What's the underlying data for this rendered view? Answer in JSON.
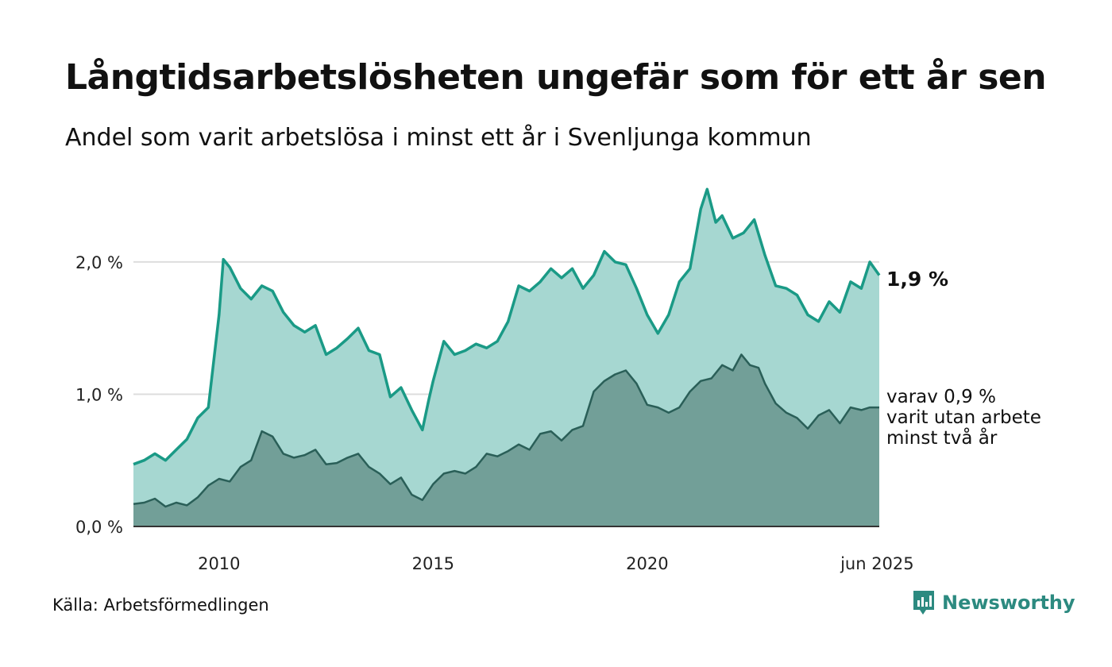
{
  "title": "Långtidsarbetslösheten ungefär som för ett år sen",
  "subtitle": "Andel som varit arbetslösa i minst ett år i Svenljunga kommun",
  "source": "Källa: Arbetsförmedlingen",
  "brand": "Newsworthy",
  "colors": {
    "line1": "#1a9a86",
    "area1": "#a6d7d1",
    "line2": "#2a5f58",
    "area2": "#729f98",
    "grid": "#dddddd",
    "brand": "#2c8a80"
  },
  "chart_data": {
    "type": "area",
    "title": "Långtidsarbetslösheten ungefär som för ett år sen",
    "subtitle": "Andel som varit arbetslösa i minst ett år i Svenljunga kommun",
    "unit": "%",
    "x_start": "2008-01",
    "x_end": "2025-06",
    "x_ticks": [
      {
        "label": "2010",
        "x": 2010
      },
      {
        "label": "2015",
        "x": 2015
      },
      {
        "label": "2020",
        "x": 2020
      },
      {
        "label": "jun 2025",
        "x": 2025
      }
    ],
    "y_ticks": [
      {
        "label": "0,0 %",
        "value": 0
      },
      {
        "label": "1,0 %",
        "value": 1
      },
      {
        "label": "2,0 %",
        "value": 2
      }
    ],
    "ylim": [
      0,
      2.6
    ],
    "grid": true,
    "end_labels": {
      "series1": "1,9 %",
      "series2_lines": [
        "varav 0,9 %",
        "varit utan arbete",
        "minst två år"
      ]
    },
    "series": [
      {
        "key": "min1",
        "points": [
          [
            2008.0,
            0.47
          ],
          [
            2008.25,
            0.5
          ],
          [
            2008.5,
            0.55
          ],
          [
            2008.75,
            0.5
          ],
          [
            2009.0,
            0.58
          ],
          [
            2009.25,
            0.66
          ],
          [
            2009.5,
            0.82
          ],
          [
            2009.75,
            0.9
          ],
          [
            2010.0,
            1.6
          ],
          [
            2010.1,
            2.02
          ],
          [
            2010.25,
            1.96
          ],
          [
            2010.5,
            1.8
          ],
          [
            2010.75,
            1.72
          ],
          [
            2011.0,
            1.82
          ],
          [
            2011.25,
            1.78
          ],
          [
            2011.5,
            1.62
          ],
          [
            2011.75,
            1.52
          ],
          [
            2012.0,
            1.47
          ],
          [
            2012.25,
            1.52
          ],
          [
            2012.5,
            1.3
          ],
          [
            2012.75,
            1.35
          ],
          [
            2013.0,
            1.42
          ],
          [
            2013.25,
            1.5
          ],
          [
            2013.5,
            1.33
          ],
          [
            2013.75,
            1.3
          ],
          [
            2014.0,
            0.98
          ],
          [
            2014.25,
            1.05
          ],
          [
            2014.5,
            0.88
          ],
          [
            2014.75,
            0.73
          ],
          [
            2014.9,
            0.96
          ],
          [
            2015.0,
            1.1
          ],
          [
            2015.25,
            1.4
          ],
          [
            2015.5,
            1.3
          ],
          [
            2015.75,
            1.33
          ],
          [
            2016.0,
            1.38
          ],
          [
            2016.25,
            1.35
          ],
          [
            2016.5,
            1.4
          ],
          [
            2016.75,
            1.55
          ],
          [
            2017.0,
            1.82
          ],
          [
            2017.25,
            1.78
          ],
          [
            2017.5,
            1.85
          ],
          [
            2017.75,
            1.95
          ],
          [
            2018.0,
            1.88
          ],
          [
            2018.25,
            1.95
          ],
          [
            2018.5,
            1.8
          ],
          [
            2018.75,
            1.9
          ],
          [
            2019.0,
            2.08
          ],
          [
            2019.25,
            2.0
          ],
          [
            2019.5,
            1.98
          ],
          [
            2019.75,
            1.8
          ],
          [
            2020.0,
            1.6
          ],
          [
            2020.25,
            1.46
          ],
          [
            2020.5,
            1.6
          ],
          [
            2020.75,
            1.85
          ],
          [
            2021.0,
            1.95
          ],
          [
            2021.25,
            2.4
          ],
          [
            2021.4,
            2.55
          ],
          [
            2021.6,
            2.3
          ],
          [
            2021.75,
            2.35
          ],
          [
            2022.0,
            2.18
          ],
          [
            2022.25,
            2.22
          ],
          [
            2022.5,
            2.32
          ],
          [
            2022.75,
            2.05
          ],
          [
            2023.0,
            1.82
          ],
          [
            2023.25,
            1.8
          ],
          [
            2023.5,
            1.75
          ],
          [
            2023.75,
            1.6
          ],
          [
            2024.0,
            1.55
          ],
          [
            2024.25,
            1.7
          ],
          [
            2024.5,
            1.62
          ],
          [
            2024.75,
            1.85
          ],
          [
            2025.0,
            1.8
          ],
          [
            2025.2,
            2.0
          ],
          [
            2025.42,
            1.9
          ]
        ]
      },
      {
        "key": "min2",
        "points": [
          [
            2008.0,
            0.17
          ],
          [
            2008.25,
            0.18
          ],
          [
            2008.5,
            0.21
          ],
          [
            2008.75,
            0.15
          ],
          [
            2009.0,
            0.18
          ],
          [
            2009.25,
            0.16
          ],
          [
            2009.5,
            0.22
          ],
          [
            2009.75,
            0.31
          ],
          [
            2010.0,
            0.36
          ],
          [
            2010.25,
            0.34
          ],
          [
            2010.5,
            0.45
          ],
          [
            2010.75,
            0.5
          ],
          [
            2011.0,
            0.72
          ],
          [
            2011.25,
            0.68
          ],
          [
            2011.5,
            0.55
          ],
          [
            2011.75,
            0.52
          ],
          [
            2012.0,
            0.54
          ],
          [
            2012.25,
            0.58
          ],
          [
            2012.5,
            0.47
          ],
          [
            2012.75,
            0.48
          ],
          [
            2013.0,
            0.52
          ],
          [
            2013.25,
            0.55
          ],
          [
            2013.5,
            0.45
          ],
          [
            2013.75,
            0.4
          ],
          [
            2014.0,
            0.32
          ],
          [
            2014.25,
            0.37
          ],
          [
            2014.5,
            0.24
          ],
          [
            2014.75,
            0.2
          ],
          [
            2015.0,
            0.32
          ],
          [
            2015.25,
            0.4
          ],
          [
            2015.5,
            0.42
          ],
          [
            2015.75,
            0.4
          ],
          [
            2016.0,
            0.45
          ],
          [
            2016.25,
            0.55
          ],
          [
            2016.5,
            0.53
          ],
          [
            2016.75,
            0.57
          ],
          [
            2017.0,
            0.62
          ],
          [
            2017.25,
            0.58
          ],
          [
            2017.5,
            0.7
          ],
          [
            2017.75,
            0.72
          ],
          [
            2018.0,
            0.65
          ],
          [
            2018.25,
            0.73
          ],
          [
            2018.5,
            0.76
          ],
          [
            2018.75,
            1.02
          ],
          [
            2019.0,
            1.1
          ],
          [
            2019.25,
            1.15
          ],
          [
            2019.5,
            1.18
          ],
          [
            2019.75,
            1.08
          ],
          [
            2020.0,
            0.92
          ],
          [
            2020.25,
            0.9
          ],
          [
            2020.5,
            0.86
          ],
          [
            2020.75,
            0.9
          ],
          [
            2021.0,
            1.02
          ],
          [
            2021.25,
            1.1
          ],
          [
            2021.5,
            1.12
          ],
          [
            2021.75,
            1.22
          ],
          [
            2022.0,
            1.18
          ],
          [
            2022.2,
            1.3
          ],
          [
            2022.4,
            1.22
          ],
          [
            2022.6,
            1.2
          ],
          [
            2022.75,
            1.08
          ],
          [
            2023.0,
            0.93
          ],
          [
            2023.25,
            0.86
          ],
          [
            2023.5,
            0.82
          ],
          [
            2023.75,
            0.74
          ],
          [
            2024.0,
            0.84
          ],
          [
            2024.25,
            0.88
          ],
          [
            2024.5,
            0.78
          ],
          [
            2024.75,
            0.9
          ],
          [
            2025.0,
            0.88
          ],
          [
            2025.2,
            0.9
          ],
          [
            2025.42,
            0.9
          ]
        ]
      }
    ]
  }
}
